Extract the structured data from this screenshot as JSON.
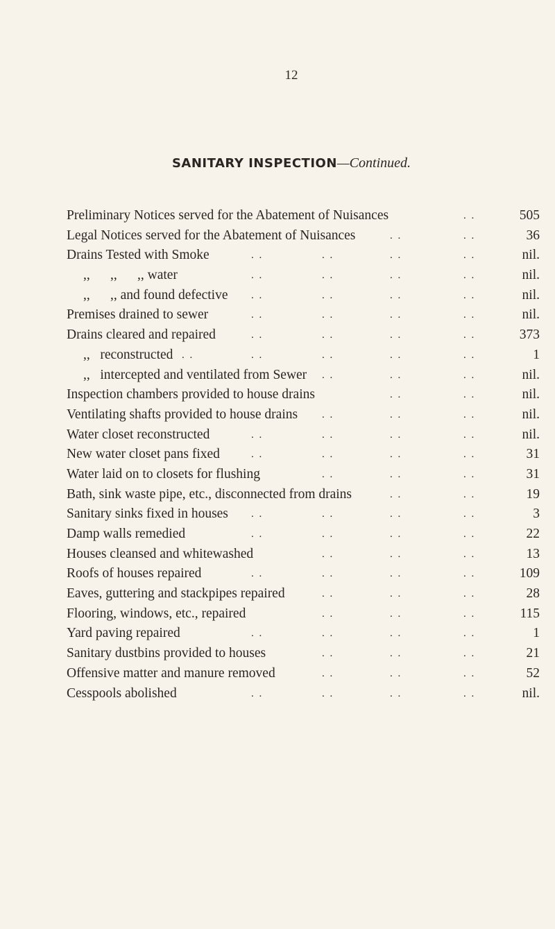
{
  "page_number": "12",
  "title": {
    "bold": "SANITARY INSPECTION",
    "italic": "—Continued."
  },
  "rows": [
    {
      "label": "Preliminary Notices served for the Abatement of Nuisances",
      "value": "505"
    },
    {
      "label": "Legal Notices served for the Abatement of Nuisances",
      "value": "36"
    },
    {
      "label": "Drains Tested with Smoke",
      "value": "nil."
    },
    {
      "label": ",,      ,,      ,, water",
      "value": "nil."
    },
    {
      "label": ",,      ,, and found defective",
      "value": "nil."
    },
    {
      "label": "Premises drained to sewer",
      "value": "nil."
    },
    {
      "label": "Drains cleared and repaired",
      "value": "373"
    },
    {
      "label": ",,   reconstructed",
      "value": "1"
    },
    {
      "label": ",,   intercepted and ventilated from Sewer",
      "value": "nil."
    },
    {
      "label": "Inspection chambers provided to house drains",
      "value": "nil."
    },
    {
      "label": "Ventilating shafts provided to house drains",
      "value": "nil."
    },
    {
      "label": "Water closet reconstructed",
      "value": "nil."
    },
    {
      "label": "New water closet pans fixed",
      "value": "31"
    },
    {
      "label": "Water laid on to closets for flushing",
      "value": "31"
    },
    {
      "label": "Bath, sink waste pipe, etc., disconnected from drains",
      "value": "19"
    },
    {
      "label": "Sanitary sinks fixed in houses",
      "value": "3"
    },
    {
      "label": "Damp walls remedied",
      "value": "22"
    },
    {
      "label": "Houses cleansed and whitewashed",
      "value": "13"
    },
    {
      "label": "Roofs of houses repaired",
      "value": "109"
    },
    {
      "label": "Eaves, guttering and stackpipes repaired",
      "value": "28"
    },
    {
      "label": "Flooring, windows, etc., repaired",
      "value": "115"
    },
    {
      "label": "Yard paving repaired",
      "value": "1"
    },
    {
      "label": "Sanitary dustbins provided to houses",
      "value": "21"
    },
    {
      "label": "Offensive matter and manure removed",
      "value": "52"
    },
    {
      "label": "Cesspools abolished",
      "value": "nil."
    }
  ]
}
